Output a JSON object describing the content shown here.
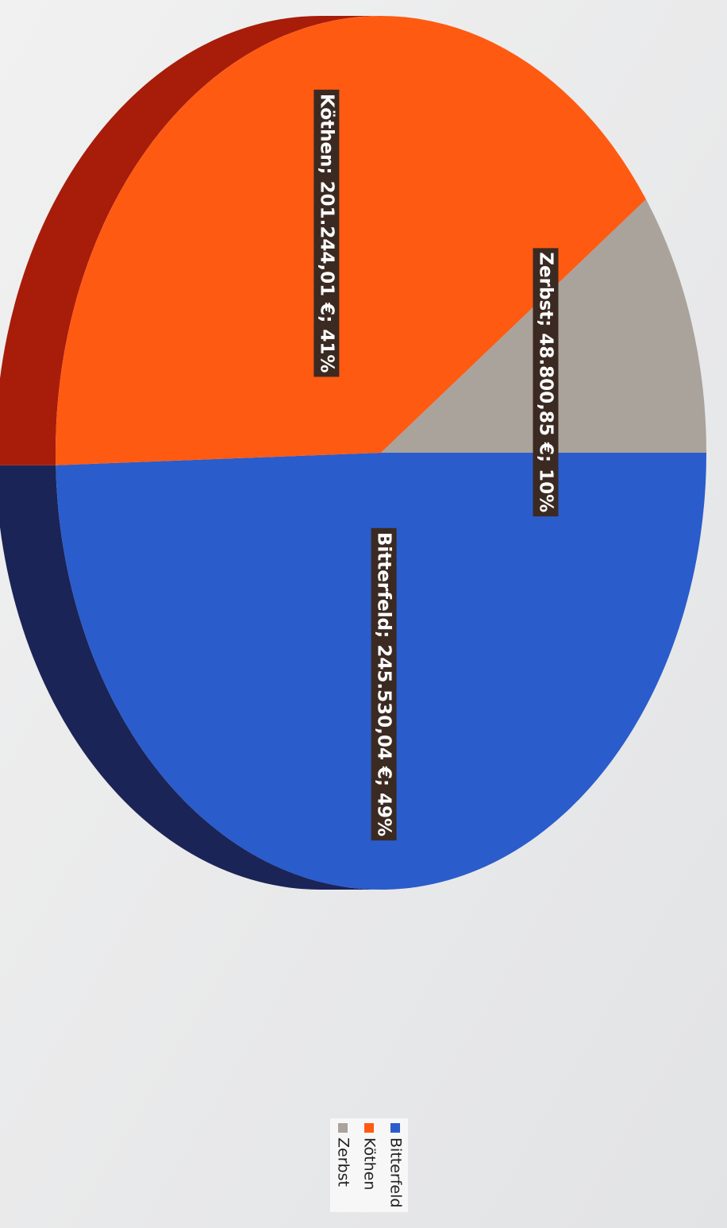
{
  "chart_data": {
    "type": "pie",
    "categories": [
      "Bitterfeld",
      "Köthen",
      "Zerbst"
    ],
    "values": [
      245530.04,
      201244.01,
      48800.85
    ],
    "value_labels": [
      "Bitterfeld; 245.530,04 €; 49%",
      "Köthen; 201.244,01 €; 41%",
      "Zerbst; 48.800,85 €; 10%"
    ],
    "colors": [
      "#2a5ccb",
      "#ff5a12",
      "#a9a39c"
    ],
    "side_colors": [
      "#1b2456",
      "#a81c0a",
      "#6e6a66"
    ],
    "legend": "bottom"
  }
}
